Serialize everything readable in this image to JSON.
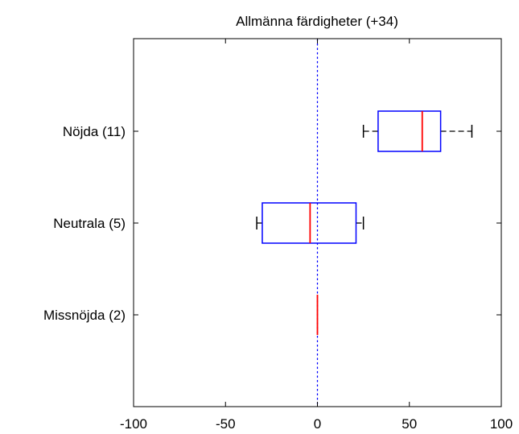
{
  "chart_data": {
    "type": "boxplot",
    "orientation": "horizontal",
    "title": "Allmänna färdigheter (+34)",
    "xlim": [
      -100,
      100
    ],
    "xticks": [
      -100,
      -50,
      0,
      50,
      100
    ],
    "xtick_labels": [
      "-100",
      "-50",
      "0",
      "50",
      "100"
    ],
    "reference_line": {
      "x": 0,
      "style": "dotted"
    },
    "grid": false,
    "categories": [
      "Nöjda (11)",
      "Neutrala (5)",
      "Missnöjda (2)"
    ],
    "boxes": [
      {
        "label": "Nöjda (11)",
        "whisker_low": 25,
        "q1": 33,
        "median": 57,
        "q3": 67,
        "whisker_high": 84
      },
      {
        "label": "Neutrala (5)",
        "whisker_low": -33,
        "q1": -30,
        "median": -4,
        "q3": 21,
        "whisker_high": 25
      },
      {
        "label": "Missnöjda (2)",
        "whisker_low": 0,
        "q1": 0,
        "median": 0,
        "q3": 0,
        "whisker_high": 0
      }
    ],
    "colors": {
      "box": "#0000ff",
      "median": "#ff0000",
      "whisker": "#000000",
      "axis": "#000000",
      "reference": "#0000ff"
    }
  }
}
